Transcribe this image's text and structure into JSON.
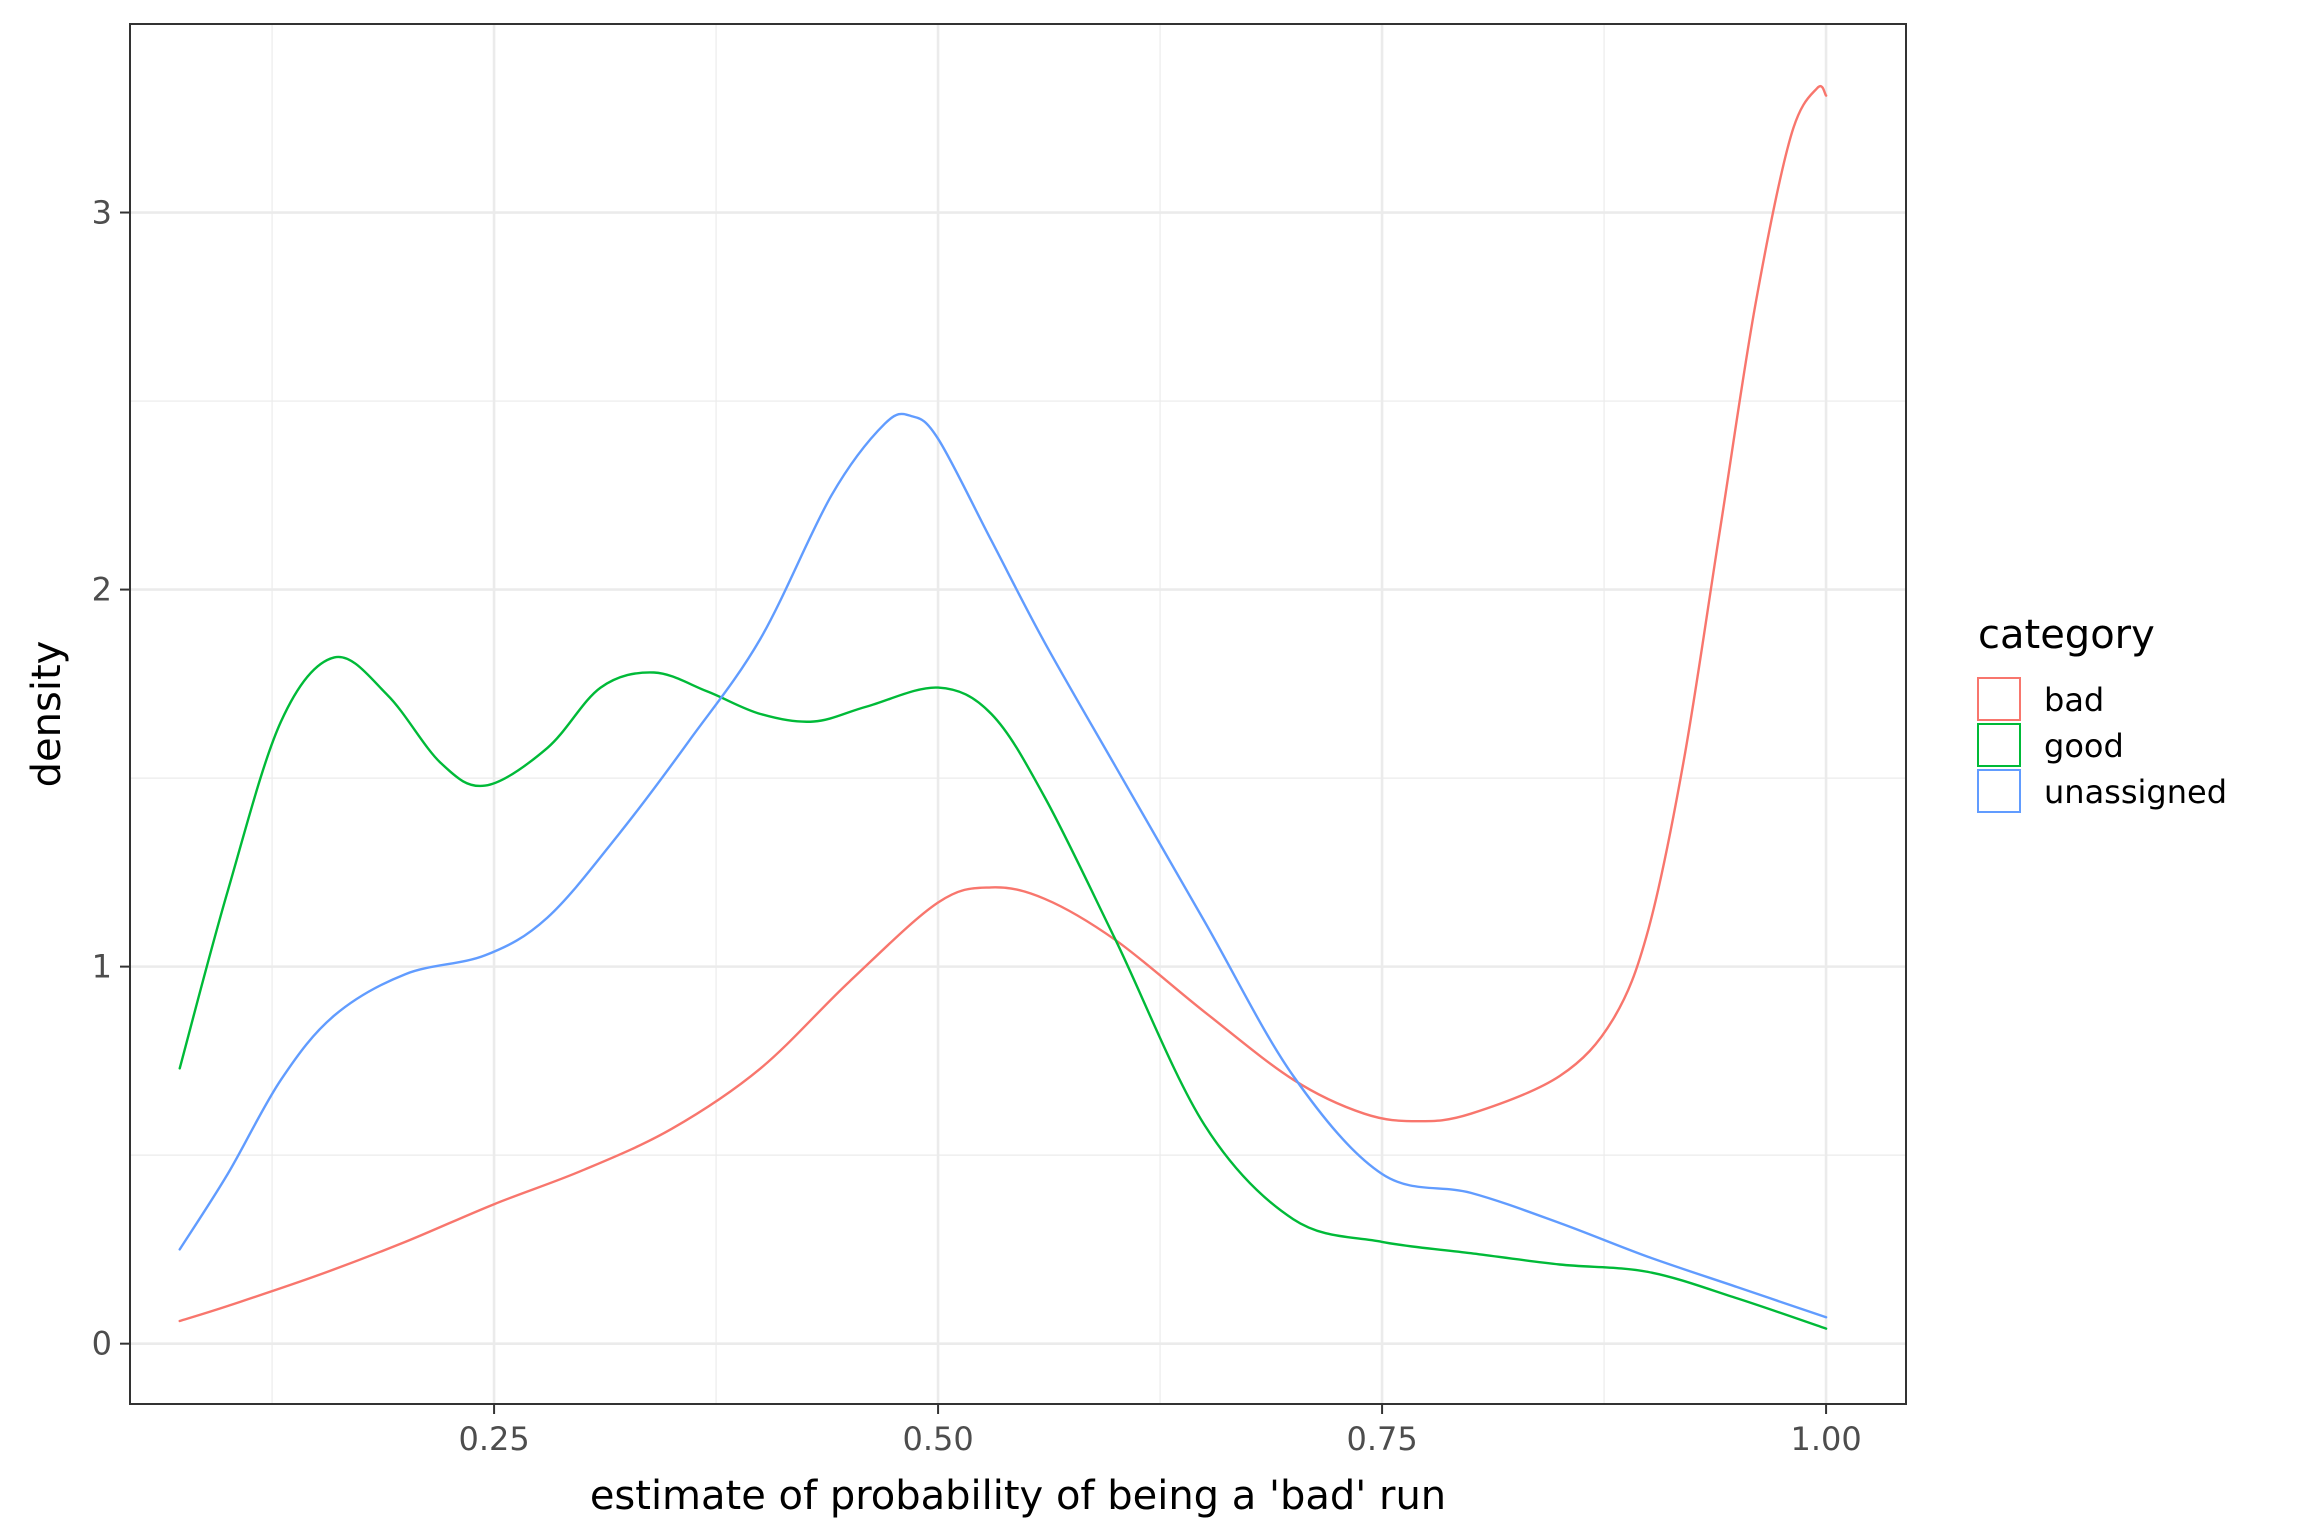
{
  "chart_data": {
    "type": "line",
    "subtype": "density",
    "xlabel": "estimate of probability of being a 'bad' run",
    "ylabel": "density",
    "xlim": [
      0.045,
      1.045
    ],
    "ylim": [
      -0.16,
      3.5
    ],
    "x_ticks": [
      0.25,
      0.5,
      0.75,
      1.0
    ],
    "x_tick_labels": [
      "0.25",
      "0.50",
      "0.75",
      "1.00"
    ],
    "y_ticks": [
      0,
      1,
      2,
      3
    ],
    "y_tick_labels": [
      "0",
      "1",
      "2",
      "3"
    ],
    "grid": true,
    "legend": {
      "title": "category",
      "position": "right"
    },
    "series": [
      {
        "name": "bad",
        "color": "#F8766D",
        "x": [
          0.073,
          0.1,
          0.15,
          0.2,
          0.25,
          0.3,
          0.35,
          0.4,
          0.45,
          0.5,
          0.53,
          0.56,
          0.6,
          0.65,
          0.7,
          0.74,
          0.77,
          0.8,
          0.85,
          0.88,
          0.9,
          0.92,
          0.94,
          0.96,
          0.98,
          0.995,
          1.0
        ],
        "y": [
          0.06,
          0.1,
          0.18,
          0.27,
          0.37,
          0.46,
          0.57,
          0.73,
          0.96,
          1.17,
          1.21,
          1.18,
          1.07,
          0.88,
          0.7,
          0.61,
          0.59,
          0.61,
          0.71,
          0.86,
          1.1,
          1.55,
          2.15,
          2.75,
          3.2,
          3.33,
          3.31
        ]
      },
      {
        "name": "good",
        "color": "#00BA38",
        "x": [
          0.073,
          0.1,
          0.13,
          0.16,
          0.19,
          0.22,
          0.245,
          0.28,
          0.31,
          0.34,
          0.37,
          0.4,
          0.43,
          0.46,
          0.5,
          0.53,
          0.56,
          0.6,
          0.65,
          0.7,
          0.75,
          0.8,
          0.85,
          0.9,
          0.95,
          1.0
        ],
        "y": [
          0.73,
          1.2,
          1.65,
          1.82,
          1.72,
          1.54,
          1.48,
          1.58,
          1.74,
          1.78,
          1.73,
          1.67,
          1.65,
          1.69,
          1.74,
          1.67,
          1.45,
          1.07,
          0.58,
          0.33,
          0.27,
          0.24,
          0.21,
          0.19,
          0.12,
          0.04
        ]
      },
      {
        "name": "unassigned",
        "color": "#619CFF",
        "x": [
          0.073,
          0.1,
          0.13,
          0.16,
          0.2,
          0.245,
          0.28,
          0.32,
          0.36,
          0.4,
          0.44,
          0.47,
          0.485,
          0.5,
          0.53,
          0.56,
          0.6,
          0.65,
          0.7,
          0.75,
          0.8,
          0.85,
          0.9,
          0.95,
          1.0
        ],
        "y": [
          0.25,
          0.45,
          0.7,
          0.87,
          0.98,
          1.03,
          1.13,
          1.35,
          1.6,
          1.87,
          2.25,
          2.44,
          2.46,
          2.4,
          2.13,
          1.86,
          1.53,
          1.12,
          0.71,
          0.45,
          0.4,
          0.32,
          0.23,
          0.15,
          0.07
        ]
      }
    ]
  }
}
